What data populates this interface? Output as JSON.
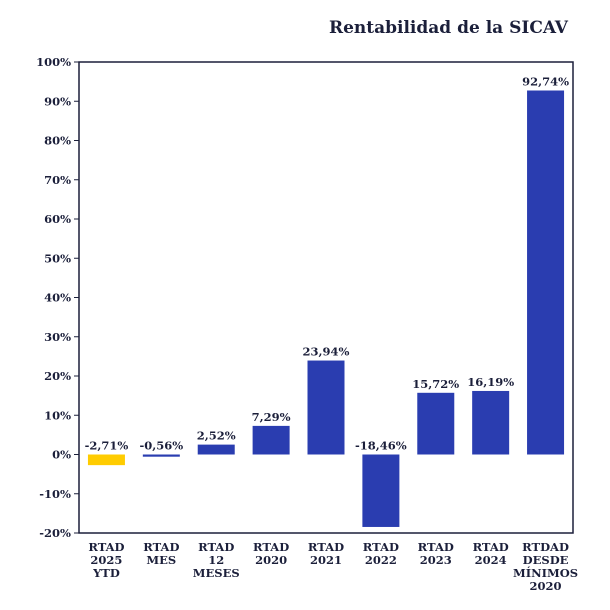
{
  "chart_data": {
    "type": "bar",
    "title": "Rentabilidad de la SICAV",
    "xlabel": "",
    "ylabel": "",
    "ylim": [
      -20,
      100
    ],
    "yticks": [
      100,
      90,
      80,
      70,
      60,
      50,
      40,
      30,
      20,
      10,
      0,
      -10,
      -20
    ],
    "ytick_labels": [
      "100%",
      "90%",
      "80%",
      "70%",
      "60%",
      "50%",
      "40%",
      "30%",
      "20%",
      "10%",
      "0%",
      "-10%",
      "-20%"
    ],
    "grid": false,
    "categories": [
      [
        "RTAD",
        "2025",
        "YTD"
      ],
      [
        "RTAD",
        "MES"
      ],
      [
        "RTAD",
        "12",
        "MESES"
      ],
      [
        "RTAD",
        "2020"
      ],
      [
        "RTAD",
        "2021"
      ],
      [
        "RTAD",
        "2022"
      ],
      [
        "RTAD",
        "2023"
      ],
      [
        "RTAD",
        "2024"
      ],
      [
        "RTDAD",
        "DESDE",
        "MÍNIMOS",
        "2020"
      ]
    ],
    "values": [
      -2.71,
      -0.56,
      2.52,
      7.29,
      23.94,
      -18.46,
      15.72,
      16.19,
      92.74
    ],
    "data_labels": [
      "-2,71%",
      "-0,56%",
      "2,52%",
      "7,29%",
      "23,94%",
      "-18,46%",
      "15,72%",
      "16,19%",
      "92,74%"
    ],
    "colors": [
      "#ffcc00",
      "#2a3db0",
      "#2a3db0",
      "#2a3db0",
      "#2a3db0",
      "#2a3db0",
      "#2a3db0",
      "#2a3db0",
      "#2a3db0"
    ],
    "axis_color": "#1b1f3a"
  }
}
